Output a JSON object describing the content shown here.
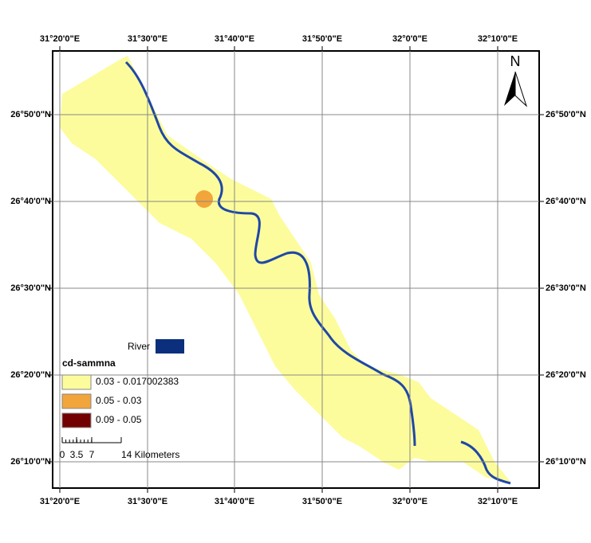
{
  "map": {
    "lon_labels": [
      "31°20'0\"E",
      "31°30'0\"E",
      "31°40'0\"E",
      "31°50'0\"E",
      "32°0'0\"E",
      "32°10'0\"E"
    ],
    "lat_labels": [
      "26°50'0\"N",
      "26°40'0\"N",
      "26°30'0\"N",
      "26°20'0\"N",
      "26°10'0\"N"
    ],
    "north": "N",
    "legend": {
      "river": "River",
      "title": "cd-sammna",
      "classes": [
        {
          "label": "0.03 - 0.017002383",
          "color": "#fcfc9c"
        },
        {
          "label": "0.05 - 0.03",
          "color": "#f2a53a"
        },
        {
          "label": "0.09 - 0.05",
          "color": "#730000"
        }
      ]
    },
    "scale": {
      "labels": [
        "0",
        "3.5",
        "7",
        "14 Kilometers"
      ]
    }
  }
}
